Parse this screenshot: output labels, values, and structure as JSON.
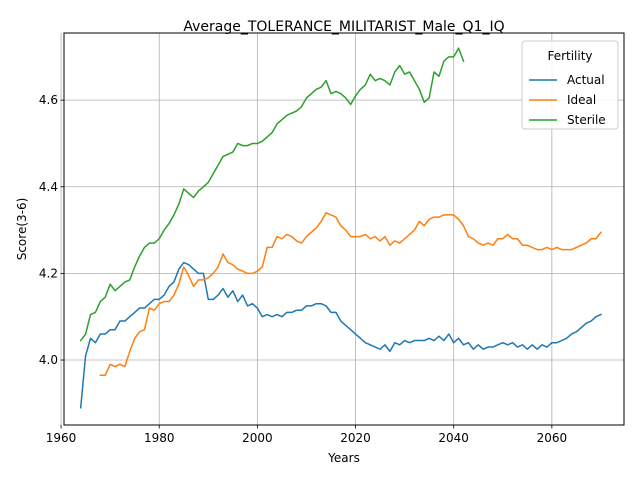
{
  "chart_data": {
    "type": "line",
    "title": "Average_TOLERANCE_MILITARIST_Male_Q1_IQ",
    "xlabel": "Years",
    "ylabel": "Score(3-6)",
    "xlim": [
      1960.6,
      2074.7
    ],
    "ylim": [
      3.85,
      4.755
    ],
    "xticks": [
      1960,
      1980,
      2000,
      2020,
      2040,
      2060
    ],
    "yticks": [
      4.0,
      4.2,
      4.4,
      4.6
    ],
    "ytick_labels": [
      "4.0",
      "4.2",
      "4.4",
      "4.6"
    ],
    "grid": true,
    "legend": {
      "title": "Fertility",
      "position": "top-right"
    },
    "series": [
      {
        "name": "Actual",
        "color": "#1f77b4",
        "points": [
          [
            1964,
            3.89
          ],
          [
            1965,
            4.01
          ],
          [
            1966,
            4.05
          ],
          [
            1967,
            4.04
          ],
          [
            1968,
            4.06
          ],
          [
            1969,
            4.06
          ],
          [
            1970,
            4.07
          ],
          [
            1971,
            4.07
          ],
          [
            1972,
            4.09
          ],
          [
            1973,
            4.09
          ],
          [
            1974,
            4.1
          ],
          [
            1975,
            4.11
          ],
          [
            1976,
            4.12
          ],
          [
            1977,
            4.12
          ],
          [
            1978,
            4.13
          ],
          [
            1979,
            4.14
          ],
          [
            1980,
            4.14
          ],
          [
            1981,
            4.15
          ],
          [
            1982,
            4.17
          ],
          [
            1983,
            4.18
          ],
          [
            1984,
            4.21
          ],
          [
            1985,
            4.225
          ],
          [
            1986,
            4.22
          ],
          [
            1987,
            4.21
          ],
          [
            1988,
            4.2
          ],
          [
            1989,
            4.2
          ],
          [
            1990,
            4.14
          ],
          [
            1991,
            4.14
          ],
          [
            1992,
            4.15
          ],
          [
            1993,
            4.165
          ],
          [
            1994,
            4.145
          ],
          [
            1995,
            4.16
          ],
          [
            1996,
            4.135
          ],
          [
            1997,
            4.15
          ],
          [
            1998,
            4.125
          ],
          [
            1999,
            4.13
          ],
          [
            2000,
            4.12
          ],
          [
            2001,
            4.1
          ],
          [
            2002,
            4.105
          ],
          [
            2003,
            4.1
          ],
          [
            2004,
            4.105
          ],
          [
            2005,
            4.1
          ],
          [
            2006,
            4.11
          ],
          [
            2007,
            4.11
          ],
          [
            2008,
            4.115
          ],
          [
            2009,
            4.115
          ],
          [
            2010,
            4.125
          ],
          [
            2011,
            4.125
          ],
          [
            2012,
            4.13
          ],
          [
            2013,
            4.13
          ],
          [
            2014,
            4.125
          ],
          [
            2015,
            4.11
          ],
          [
            2016,
            4.11
          ],
          [
            2017,
            4.09
          ],
          [
            2018,
            4.08
          ],
          [
            2019,
            4.07
          ],
          [
            2020,
            4.06
          ],
          [
            2021,
            4.05
          ],
          [
            2022,
            4.04
          ],
          [
            2023,
            4.035
          ],
          [
            2024,
            4.03
          ],
          [
            2025,
            4.025
          ],
          [
            2026,
            4.035
          ],
          [
            2027,
            4.02
          ],
          [
            2028,
            4.04
          ],
          [
            2029,
            4.035
          ],
          [
            2030,
            4.045
          ],
          [
            2031,
            4.04
          ],
          [
            2032,
            4.045
          ],
          [
            2033,
            4.045
          ],
          [
            2034,
            4.045
          ],
          [
            2035,
            4.05
          ],
          [
            2036,
            4.045
          ],
          [
            2037,
            4.055
          ],
          [
            2038,
            4.045
          ],
          [
            2039,
            4.06
          ],
          [
            2040,
            4.04
          ],
          [
            2041,
            4.05
          ],
          [
            2042,
            4.035
          ],
          [
            2043,
            4.04
          ],
          [
            2044,
            4.025
          ],
          [
            2045,
            4.035
          ],
          [
            2046,
            4.025
          ],
          [
            2047,
            4.03
          ],
          [
            2048,
            4.03
          ],
          [
            2049,
            4.035
          ],
          [
            2050,
            4.04
          ],
          [
            2051,
            4.035
          ],
          [
            2052,
            4.04
          ],
          [
            2053,
            4.03
          ],
          [
            2054,
            4.035
          ],
          [
            2055,
            4.025
          ],
          [
            2056,
            4.035
          ],
          [
            2057,
            4.025
          ],
          [
            2058,
            4.035
          ],
          [
            2059,
            4.03
          ],
          [
            2060,
            4.04
          ],
          [
            2061,
            4.04
          ],
          [
            2062,
            4.045
          ],
          [
            2063,
            4.05
          ],
          [
            2064,
            4.06
          ],
          [
            2065,
            4.065
          ],
          [
            2066,
            4.075
          ],
          [
            2067,
            4.085
          ],
          [
            2068,
            4.09
          ],
          [
            2069,
            4.1
          ],
          [
            2070,
            4.105
          ]
        ]
      },
      {
        "name": "Ideal",
        "color": "#ff7f0e",
        "points": [
          [
            1968,
            3.965
          ],
          [
            1969,
            3.965
          ],
          [
            1970,
            3.99
          ],
          [
            1971,
            3.985
          ],
          [
            1972,
            3.99
          ],
          [
            1973,
            3.985
          ],
          [
            1974,
            4.02
          ],
          [
            1975,
            4.05
          ],
          [
            1976,
            4.065
          ],
          [
            1977,
            4.07
          ],
          [
            1978,
            4.12
          ],
          [
            1979,
            4.115
          ],
          [
            1980,
            4.13
          ],
          [
            1981,
            4.135
          ],
          [
            1982,
            4.135
          ],
          [
            1983,
            4.15
          ],
          [
            1984,
            4.175
          ],
          [
            1985,
            4.215
          ],
          [
            1986,
            4.195
          ],
          [
            1987,
            4.17
          ],
          [
            1988,
            4.185
          ],
          [
            1989,
            4.185
          ],
          [
            1990,
            4.19
          ],
          [
            1991,
            4.2
          ],
          [
            1992,
            4.215
          ],
          [
            1993,
            4.245
          ],
          [
            1994,
            4.225
          ],
          [
            1995,
            4.22
          ],
          [
            1996,
            4.21
          ],
          [
            1997,
            4.205
          ],
          [
            1998,
            4.2
          ],
          [
            1999,
            4.2
          ],
          [
            2000,
            4.205
          ],
          [
            2001,
            4.215
          ],
          [
            2002,
            4.26
          ],
          [
            2003,
            4.26
          ],
          [
            2004,
            4.285
          ],
          [
            2005,
            4.28
          ],
          [
            2006,
            4.29
          ],
          [
            2007,
            4.285
          ],
          [
            2008,
            4.275
          ],
          [
            2009,
            4.27
          ],
          [
            2010,
            4.285
          ],
          [
            2011,
            4.295
          ],
          [
            2012,
            4.305
          ],
          [
            2013,
            4.32
          ],
          [
            2014,
            4.34
          ],
          [
            2015,
            4.335
          ],
          [
            2016,
            4.33
          ],
          [
            2017,
            4.31
          ],
          [
            2018,
            4.3
          ],
          [
            2019,
            4.285
          ],
          [
            2020,
            4.285
          ],
          [
            2021,
            4.285
          ],
          [
            2022,
            4.29
          ],
          [
            2023,
            4.28
          ],
          [
            2024,
            4.285
          ],
          [
            2025,
            4.275
          ],
          [
            2026,
            4.285
          ],
          [
            2027,
            4.265
          ],
          [
            2028,
            4.275
          ],
          [
            2029,
            4.27
          ],
          [
            2030,
            4.28
          ],
          [
            2031,
            4.29
          ],
          [
            2032,
            4.3
          ],
          [
            2033,
            4.32
          ],
          [
            2034,
            4.31
          ],
          [
            2035,
            4.325
          ],
          [
            2036,
            4.33
          ],
          [
            2037,
            4.33
          ],
          [
            2038,
            4.335
          ],
          [
            2039,
            4.335
          ],
          [
            2040,
            4.335
          ],
          [
            2041,
            4.325
          ],
          [
            2042,
            4.31
          ],
          [
            2043,
            4.285
          ],
          [
            2044,
            4.28
          ],
          [
            2045,
            4.27
          ],
          [
            2046,
            4.265
          ],
          [
            2047,
            4.27
          ],
          [
            2048,
            4.265
          ],
          [
            2049,
            4.28
          ],
          [
            2050,
            4.28
          ],
          [
            2051,
            4.29
          ],
          [
            2052,
            4.28
          ],
          [
            2053,
            4.28
          ],
          [
            2054,
            4.265
          ],
          [
            2055,
            4.265
          ],
          [
            2056,
            4.26
          ],
          [
            2057,
            4.255
          ],
          [
            2058,
            4.255
          ],
          [
            2059,
            4.26
          ],
          [
            2060,
            4.255
          ],
          [
            2061,
            4.26
          ],
          [
            2062,
            4.255
          ],
          [
            2063,
            4.255
          ],
          [
            2064,
            4.255
          ],
          [
            2065,
            4.26
          ],
          [
            2066,
            4.265
          ],
          [
            2067,
            4.27
          ],
          [
            2068,
            4.28
          ],
          [
            2069,
            4.28
          ],
          [
            2070,
            4.295
          ]
        ]
      },
      {
        "name": "Sterile",
        "color": "#2ca02c",
        "points": [
          [
            1964,
            4.045
          ],
          [
            1965,
            4.06
          ],
          [
            1966,
            4.105
          ],
          [
            1967,
            4.11
          ],
          [
            1968,
            4.135
          ],
          [
            1969,
            4.145
          ],
          [
            1970,
            4.175
          ],
          [
            1971,
            4.16
          ],
          [
            1972,
            4.17
          ],
          [
            1973,
            4.18
          ],
          [
            1974,
            4.185
          ],
          [
            1975,
            4.215
          ],
          [
            1976,
            4.24
          ],
          [
            1977,
            4.26
          ],
          [
            1978,
            4.27
          ],
          [
            1979,
            4.27
          ],
          [
            1980,
            4.28
          ],
          [
            1981,
            4.3
          ],
          [
            1982,
            4.315
          ],
          [
            1983,
            4.335
          ],
          [
            1984,
            4.36
          ],
          [
            1985,
            4.395
          ],
          [
            1986,
            4.385
          ],
          [
            1987,
            4.375
          ],
          [
            1988,
            4.39
          ],
          [
            1989,
            4.4
          ],
          [
            1990,
            4.41
          ],
          [
            1991,
            4.43
          ],
          [
            1992,
            4.45
          ],
          [
            1993,
            4.47
          ],
          [
            1994,
            4.475
          ],
          [
            1995,
            4.48
          ],
          [
            1996,
            4.5
          ],
          [
            1997,
            4.495
          ],
          [
            1998,
            4.495
          ],
          [
            1999,
            4.5
          ],
          [
            2000,
            4.5
          ],
          [
            2001,
            4.505
          ],
          [
            2002,
            4.515
          ],
          [
            2003,
            4.525
          ],
          [
            2004,
            4.545
          ],
          [
            2005,
            4.555
          ],
          [
            2006,
            4.565
          ],
          [
            2007,
            4.57
          ],
          [
            2008,
            4.575
          ],
          [
            2009,
            4.585
          ],
          [
            2010,
            4.605
          ],
          [
            2011,
            4.615
          ],
          [
            2012,
            4.625
          ],
          [
            2013,
            4.63
          ],
          [
            2014,
            4.645
          ],
          [
            2015,
            4.615
          ],
          [
            2016,
            4.62
          ],
          [
            2017,
            4.615
          ],
          [
            2018,
            4.605
          ],
          [
            2019,
            4.59
          ],
          [
            2020,
            4.61
          ],
          [
            2021,
            4.625
          ],
          [
            2022,
            4.635
          ],
          [
            2023,
            4.66
          ],
          [
            2024,
            4.645
          ],
          [
            2025,
            4.65
          ],
          [
            2026,
            4.645
          ],
          [
            2027,
            4.635
          ],
          [
            2028,
            4.665
          ],
          [
            2029,
            4.68
          ],
          [
            2030,
            4.66
          ],
          [
            2031,
            4.665
          ],
          [
            2032,
            4.645
          ],
          [
            2033,
            4.625
          ],
          [
            2034,
            4.595
          ],
          [
            2035,
            4.605
          ],
          [
            2036,
            4.665
          ],
          [
            2037,
            4.655
          ],
          [
            2038,
            4.69
          ],
          [
            2039,
            4.7
          ],
          [
            2040,
            4.7
          ],
          [
            2041,
            4.72
          ],
          [
            2042,
            4.69
          ]
        ]
      }
    ]
  }
}
